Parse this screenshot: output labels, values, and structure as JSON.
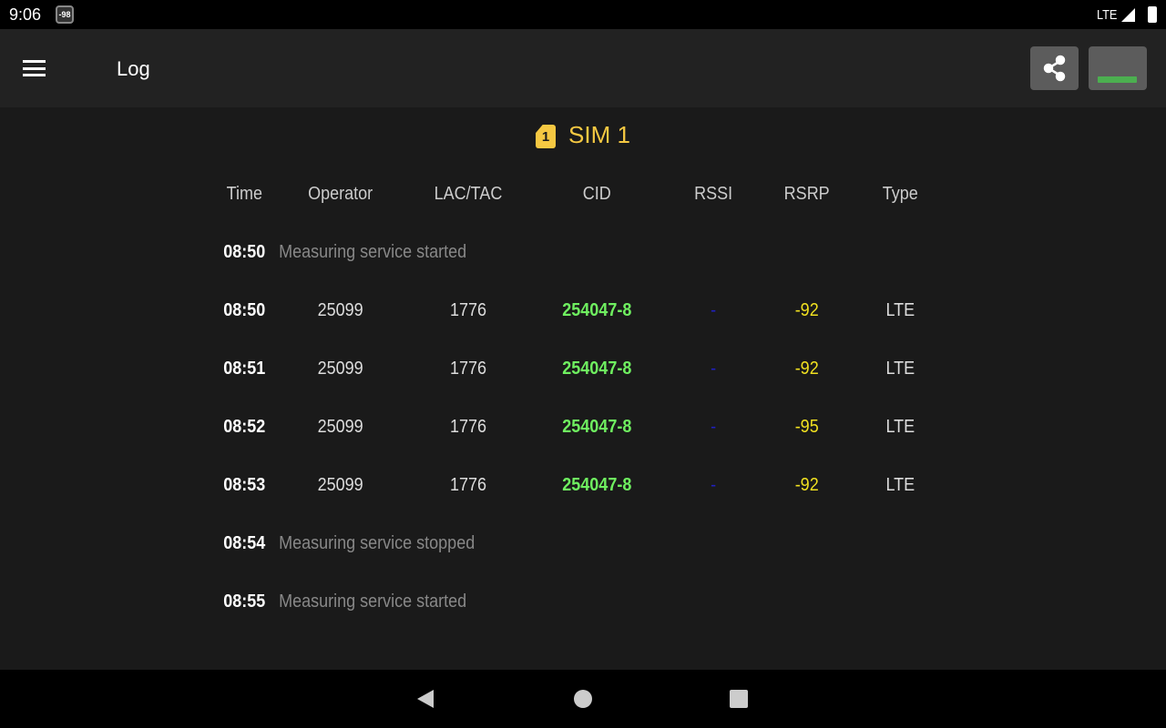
{
  "status": {
    "time": "9:06",
    "notification_badge": "-98",
    "network": "LTE"
  },
  "appbar": {
    "title": "Log"
  },
  "sim": {
    "number": "1",
    "label": "SIM 1"
  },
  "colors": {
    "cid": "#6ff060",
    "rssi": "#2020c0",
    "rsrp": "#f0e020",
    "sim": "#f5c842",
    "level_bar": "#4caf50"
  },
  "table": {
    "headers": [
      "Time",
      "Operator",
      "LAC/TAC",
      "CID",
      "RSSI",
      "RSRP",
      "Type"
    ],
    "rows": [
      {
        "time": "08:50",
        "message": "Measuring service started"
      },
      {
        "time": "08:50",
        "operator": "25099",
        "lac": "1776",
        "cid": "254047-8",
        "rssi": "-",
        "rsrp": "-92",
        "type": "LTE"
      },
      {
        "time": "08:51",
        "operator": "25099",
        "lac": "1776",
        "cid": "254047-8",
        "rssi": "-",
        "rsrp": "-92",
        "type": "LTE"
      },
      {
        "time": "08:52",
        "operator": "25099",
        "lac": "1776",
        "cid": "254047-8",
        "rssi": "-",
        "rsrp": "-95",
        "type": "LTE"
      },
      {
        "time": "08:53",
        "operator": "25099",
        "lac": "1776",
        "cid": "254047-8",
        "rssi": "-",
        "rsrp": "-92",
        "type": "LTE"
      },
      {
        "time": "08:54",
        "message": "Measuring service stopped"
      },
      {
        "time": "08:55",
        "message": "Measuring service started"
      }
    ]
  }
}
